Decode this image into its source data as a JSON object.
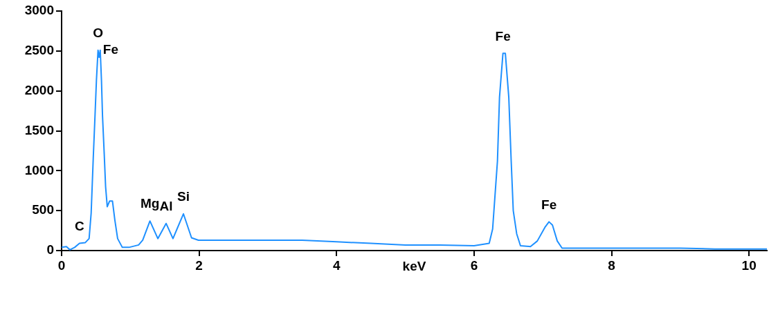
{
  "chart_data": {
    "type": "line",
    "xlabel": "keV",
    "xlim": [
      0,
      10.26
    ],
    "ylim": [
      0,
      3000
    ],
    "xticks": [
      0,
      2,
      4,
      6,
      8,
      10
    ],
    "yticks": [
      0,
      500,
      1000,
      1500,
      2000,
      2500,
      3000
    ],
    "grid": false,
    "legend": false,
    "marker": "none",
    "line_style": "solid",
    "series": [
      {
        "color": "#1e90ff",
        "x": [
          0,
          0.07,
          0.12,
          0.19,
          0.26,
          0.345,
          0.4,
          0.43,
          0.46,
          0.487,
          0.507,
          0.53,
          0.546,
          0.562,
          0.58,
          0.595,
          0.62,
          0.64,
          0.664,
          0.698,
          0.74,
          0.775,
          0.815,
          0.883,
          0.98,
          1.12,
          1.18,
          1.285,
          1.4,
          1.52,
          1.62,
          1.772,
          1.89,
          1.99,
          2.5,
          3.0,
          3.5,
          4.0,
          4.5,
          5.0,
          5.5,
          6.0,
          6.22,
          6.27,
          6.34,
          6.37,
          6.42,
          6.455,
          6.505,
          6.54,
          6.57,
          6.62,
          6.675,
          6.82,
          6.92,
          7.03,
          7.09,
          7.14,
          7.21,
          7.28,
          8.0,
          9.0,
          9.5,
          10.0,
          10.26
        ],
        "values": [
          40,
          50,
          10,
          40,
          90,
          100,
          150,
          470,
          1150,
          1710,
          2140,
          2510,
          2420,
          2510,
          2130,
          1690,
          1210,
          800,
          550,
          620,
          620,
          380,
          150,
          40,
          40,
          70,
          130,
          370,
          150,
          340,
          150,
          460,
          160,
          130,
          130,
          130,
          130,
          110,
          90,
          70,
          70,
          60,
          90,
          270,
          1120,
          1920,
          2470,
          2470,
          1920,
          1120,
          500,
          210,
          60,
          50,
          120,
          290,
          360,
          320,
          120,
          30,
          30,
          30,
          20,
          20,
          20
        ]
      }
    ],
    "annotations": [
      {
        "text": "C",
        "x": 0.26,
        "y": 90
      },
      {
        "text": "O",
        "x": 0.53,
        "y": 2510
      },
      {
        "text": "Fe",
        "x": 0.562,
        "y": 2510
      },
      {
        "text": "Mg",
        "x": 1.285,
        "y": 370
      },
      {
        "text": "Al",
        "x": 1.52,
        "y": 340
      },
      {
        "text": "Si",
        "x": 1.772,
        "y": 460
      },
      {
        "text": "Fe",
        "x": 6.42,
        "y": 2470
      },
      {
        "text": "Fe",
        "x": 7.09,
        "y": 360
      }
    ]
  }
}
